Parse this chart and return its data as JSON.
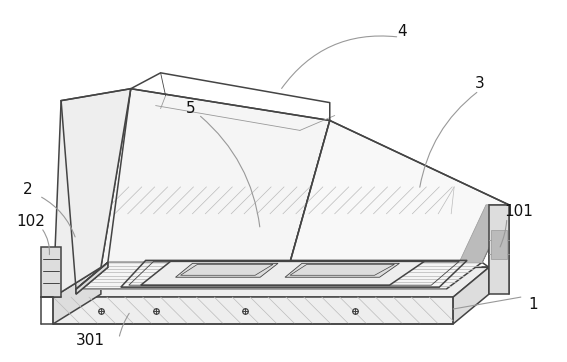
{
  "bg_color": "#ffffff",
  "lc": "#444444",
  "gray1": "#999999",
  "gray2": "#bbbbbb",
  "gray3": "#dddddd",
  "gray4": "#eeeeee",
  "gray5": "#f5f5f5",
  "lw": 1.1,
  "lt": 0.6,
  "label_fs": 11,
  "label_color": "#111111"
}
